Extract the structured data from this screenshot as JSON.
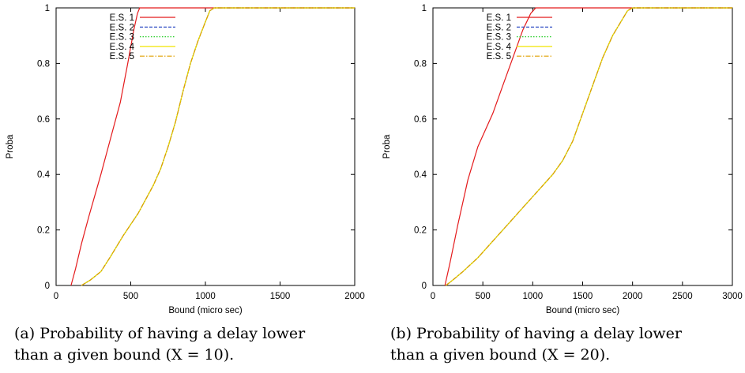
{
  "chart_data": [
    {
      "type": "line",
      "xlabel": "Bound (micro sec)",
      "ylabel": "Proba",
      "xlim": [
        0,
        2000
      ],
      "ylim": [
        0,
        1
      ],
      "xticks": [
        "0",
        "500",
        "1000",
        "1500",
        "2000"
      ],
      "yticks": [
        "0",
        "0.2",
        "0.4",
        "0.6",
        "0.8",
        "1"
      ],
      "grid": false,
      "legend_position": "top-left",
      "series": [
        {
          "name": "E.S. 1",
          "color": "#e41a1c",
          "style": "solid",
          "x": [
            100,
            130,
            170,
            220,
            300,
            380,
            430,
            480,
            520,
            545,
            560,
            2000
          ],
          "y": [
            0,
            0.06,
            0.15,
            0.25,
            0.4,
            0.56,
            0.66,
            0.8,
            0.92,
            0.98,
            1.0,
            1.0
          ]
        },
        {
          "name": "E.S. 2",
          "color": "#1f3fbf",
          "style": "dashed",
          "x": [
            170,
            230,
            300,
            360,
            450,
            550,
            650,
            700,
            750,
            800,
            850,
            900,
            950,
            1000,
            1030,
            1060,
            2000
          ],
          "y": [
            0,
            0.02,
            0.05,
            0.1,
            0.18,
            0.26,
            0.36,
            0.42,
            0.5,
            0.59,
            0.7,
            0.8,
            0.88,
            0.95,
            0.99,
            1.0,
            1.0
          ]
        },
        {
          "name": "E.S. 3",
          "color": "#22cc22",
          "style": "dotted",
          "x": [
            170,
            230,
            300,
            360,
            450,
            550,
            650,
            700,
            750,
            800,
            850,
            900,
            950,
            1000,
            1030,
            1060,
            2000
          ],
          "y": [
            0,
            0.02,
            0.05,
            0.1,
            0.18,
            0.26,
            0.36,
            0.42,
            0.5,
            0.59,
            0.7,
            0.8,
            0.88,
            0.95,
            0.99,
            1.0,
            1.0
          ]
        },
        {
          "name": "E.S. 4",
          "color": "#f2e400",
          "style": "solid",
          "x": [
            170,
            230,
            300,
            360,
            450,
            550,
            650,
            700,
            750,
            800,
            850,
            900,
            950,
            1000,
            1030,
            1060,
            2000
          ],
          "y": [
            0,
            0.02,
            0.05,
            0.1,
            0.18,
            0.26,
            0.36,
            0.42,
            0.5,
            0.59,
            0.7,
            0.8,
            0.88,
            0.95,
            0.99,
            1.0,
            1.0
          ]
        },
        {
          "name": "E.S. 5",
          "color": "#e0a000",
          "style": "dashdot",
          "x": [
            170,
            230,
            300,
            360,
            450,
            550,
            650,
            700,
            750,
            800,
            850,
            900,
            950,
            1000,
            1030,
            1060,
            2000
          ],
          "y": [
            0,
            0.02,
            0.05,
            0.1,
            0.18,
            0.26,
            0.36,
            0.42,
            0.5,
            0.59,
            0.7,
            0.8,
            0.88,
            0.95,
            0.99,
            1.0,
            1.0
          ]
        }
      ]
    },
    {
      "type": "line",
      "xlabel": "Bound (micro sec)",
      "ylabel": "Proba",
      "xlim": [
        0,
        3000
      ],
      "ylim": [
        0,
        1
      ],
      "xticks": [
        "0",
        "500",
        "1000",
        "1500",
        "2000",
        "2500",
        "3000"
      ],
      "yticks": [
        "0",
        "0.2",
        "0.4",
        "0.6",
        "0.8",
        "1"
      ],
      "grid": false,
      "legend_position": "top-left",
      "series": [
        {
          "name": "E.S. 1",
          "color": "#e41a1c",
          "style": "solid",
          "x": [
            120,
            170,
            250,
            350,
            450,
            600,
            700,
            800,
            900,
            980,
            1030,
            3000
          ],
          "y": [
            0,
            0.08,
            0.22,
            0.38,
            0.5,
            0.62,
            0.72,
            0.82,
            0.92,
            0.98,
            1.0,
            1.0
          ]
        },
        {
          "name": "E.S. 2",
          "color": "#1f3fbf",
          "style": "dashed",
          "x": [
            130,
            200,
            300,
            450,
            600,
            750,
            900,
            1000,
            1100,
            1200,
            1300,
            1400,
            1500,
            1600,
            1700,
            1800,
            1900,
            1950,
            2000,
            3000
          ],
          "y": [
            0,
            0.02,
            0.05,
            0.1,
            0.16,
            0.22,
            0.28,
            0.32,
            0.36,
            0.4,
            0.45,
            0.52,
            0.62,
            0.72,
            0.82,
            0.9,
            0.96,
            0.99,
            1.0,
            1.0
          ]
        },
        {
          "name": "E.S. 3",
          "color": "#22cc22",
          "style": "dotted",
          "x": [
            130,
            200,
            300,
            450,
            600,
            750,
            900,
            1000,
            1100,
            1200,
            1300,
            1400,
            1500,
            1600,
            1700,
            1800,
            1900,
            1950,
            2000,
            3000
          ],
          "y": [
            0,
            0.02,
            0.05,
            0.1,
            0.16,
            0.22,
            0.28,
            0.32,
            0.36,
            0.4,
            0.45,
            0.52,
            0.62,
            0.72,
            0.82,
            0.9,
            0.96,
            0.99,
            1.0,
            1.0
          ]
        },
        {
          "name": "E.S. 4",
          "color": "#f2e400",
          "style": "solid",
          "x": [
            130,
            200,
            300,
            450,
            600,
            750,
            900,
            1000,
            1100,
            1200,
            1300,
            1400,
            1500,
            1600,
            1700,
            1800,
            1900,
            1950,
            2000,
            3000
          ],
          "y": [
            0,
            0.02,
            0.05,
            0.1,
            0.16,
            0.22,
            0.28,
            0.32,
            0.36,
            0.4,
            0.45,
            0.52,
            0.62,
            0.72,
            0.82,
            0.9,
            0.96,
            0.99,
            1.0,
            1.0
          ]
        },
        {
          "name": "E.S. 5",
          "color": "#e0a000",
          "style": "dashdot",
          "x": [
            130,
            200,
            300,
            450,
            600,
            750,
            900,
            1000,
            1100,
            1200,
            1300,
            1400,
            1500,
            1600,
            1700,
            1800,
            1900,
            1950,
            2000,
            3000
          ],
          "y": [
            0,
            0.02,
            0.05,
            0.1,
            0.16,
            0.22,
            0.28,
            0.32,
            0.36,
            0.4,
            0.45,
            0.52,
            0.62,
            0.72,
            0.82,
            0.9,
            0.96,
            0.99,
            1.0,
            1.0
          ]
        }
      ]
    }
  ],
  "captions": [
    "(a) Probability of having a delay lower\nthan a given bound (X = 10).",
    "(b) Probability of having a delay lower\nthan a given bound (X = 20)."
  ]
}
